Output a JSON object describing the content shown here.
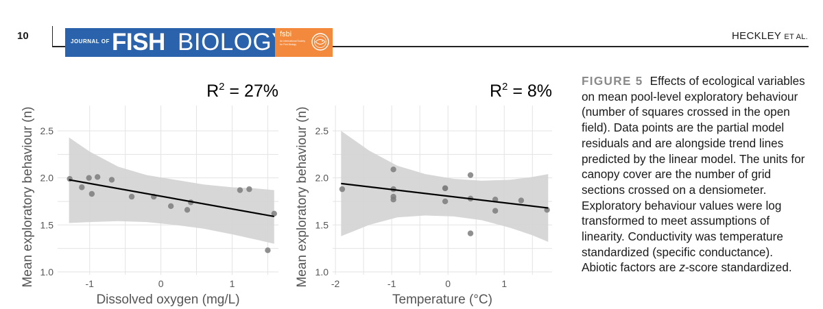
{
  "header": {
    "page_number": "10",
    "journal_prefix": "JOURNAL OF",
    "journal_fish": "FISH",
    "journal_biology": "BIOLOGY",
    "society_acronym": "fsbi",
    "society_name": "An International Society for Fish Biology",
    "authors": "HECKLEY",
    "authors_suffix": "ET AL.",
    "brand_blue": "#2a62ab",
    "brand_orange": "#f3893d"
  },
  "caption": {
    "label": "FIGURE 5",
    "text_before_italic": "Effects of ecological variables on mean pool-level exploratory behaviour (number of squares crossed in the open field). Data points are the partial model residuals and are alongside trend lines predicted by the linear model. The units for canopy cover are the number of grid sections crossed on a densiometer. Exploratory behaviour values were log transformed to meet assumptions of linearity. Conductivity was temperature standardized (specific conductance). Abiotic factors are ",
    "italic_letter": "z",
    "text_after_italic": "-score standardized."
  },
  "chart_data": [
    {
      "type": "scatter",
      "title": "R² = 27%",
      "r2_label": "R",
      "r2_exponent": "2",
      "r2_value": " = 27%",
      "xlabel": "Dissolved oxygen (mg/L)",
      "ylabel": "Mean exploratory behaviour (n)",
      "xlim": [
        -1.45,
        1.65
      ],
      "ylim": [
        0.97,
        2.77
      ],
      "xticks": [
        -1,
        0,
        1
      ],
      "xtick_labels": [
        "-1",
        "0",
        "1"
      ],
      "yticks": [
        1.0,
        1.5,
        2.0,
        2.5
      ],
      "ytick_labels": [
        "1.0",
        "1.5",
        "2.0",
        "2.5"
      ],
      "grid": true,
      "points": [
        {
          "x": -1.28,
          "y": 1.99
        },
        {
          "x": -1.11,
          "y": 1.9
        },
        {
          "x": -1.01,
          "y": 2.0
        },
        {
          "x": -0.97,
          "y": 1.83
        },
        {
          "x": -0.89,
          "y": 2.01
        },
        {
          "x": -0.69,
          "y": 1.98
        },
        {
          "x": -0.41,
          "y": 1.8
        },
        {
          "x": -0.1,
          "y": 1.8
        },
        {
          "x": 0.14,
          "y": 1.7
        },
        {
          "x": 0.37,
          "y": 1.66
        },
        {
          "x": 0.42,
          "y": 1.74
        },
        {
          "x": 1.11,
          "y": 1.87
        },
        {
          "x": 1.24,
          "y": 1.88
        },
        {
          "x": 1.5,
          "y": 1.23
        },
        {
          "x": 1.59,
          "y": 1.62
        }
      ],
      "trend": {
        "x": [
          -1.29,
          1.59
        ],
        "y": [
          1.98,
          1.59
        ]
      },
      "ci_upper": [
        {
          "x": -1.29,
          "y": 2.43
        },
        {
          "x": -1.0,
          "y": 2.28
        },
        {
          "x": -0.6,
          "y": 2.12
        },
        {
          "x": -0.2,
          "y": 2.03
        },
        {
          "x": 0.2,
          "y": 1.98
        },
        {
          "x": 0.6,
          "y": 1.93
        },
        {
          "x": 1.0,
          "y": 1.9
        },
        {
          "x": 1.3,
          "y": 1.89
        },
        {
          "x": 1.59,
          "y": 1.87
        }
      ],
      "ci_lower": [
        {
          "x": -1.29,
          "y": 1.52
        },
        {
          "x": -1.0,
          "y": 1.53
        },
        {
          "x": -0.6,
          "y": 1.54
        },
        {
          "x": -0.2,
          "y": 1.53
        },
        {
          "x": 0.2,
          "y": 1.5
        },
        {
          "x": 0.6,
          "y": 1.46
        },
        {
          "x": 1.0,
          "y": 1.4
        },
        {
          "x": 1.3,
          "y": 1.35
        },
        {
          "x": 1.59,
          "y": 1.3
        }
      ],
      "colors": {
        "point": "#7c7c7c",
        "line": "#000000",
        "band": "#d3d3d3",
        "grid": "#e3e3e3"
      }
    },
    {
      "type": "scatter",
      "title": "R² = 8%",
      "r2_label": "R",
      "r2_exponent": "2",
      "r2_value": " = 8%",
      "xlabel": "Temperature (°C)",
      "ylabel": "Mean exploratory behaviour (n)",
      "xlim": [
        -2.05,
        1.85
      ],
      "ylim": [
        0.97,
        2.77
      ],
      "xticks": [
        -2,
        -1,
        0,
        1
      ],
      "xtick_labels": [
        "-2",
        "-1",
        "0",
        "1"
      ],
      "yticks": [
        1.0,
        1.5,
        2.0,
        2.5
      ],
      "ytick_labels": [
        "1.0",
        "1.5",
        "2.0",
        "2.5"
      ],
      "grid": true,
      "points": [
        {
          "x": -1.88,
          "y": 1.88
        },
        {
          "x": -0.97,
          "y": 2.09
        },
        {
          "x": -0.97,
          "y": 1.88
        },
        {
          "x": -0.97,
          "y": 1.8
        },
        {
          "x": -0.97,
          "y": 1.77
        },
        {
          "x": -0.05,
          "y": 1.89
        },
        {
          "x": -0.05,
          "y": 1.89
        },
        {
          "x": -0.05,
          "y": 1.75
        },
        {
          "x": 0.4,
          "y": 2.03
        },
        {
          "x": 0.4,
          "y": 1.78
        },
        {
          "x": 0.4,
          "y": 1.41
        },
        {
          "x": 0.84,
          "y": 1.77
        },
        {
          "x": 0.84,
          "y": 1.65
        },
        {
          "x": 1.3,
          "y": 1.76
        },
        {
          "x": 1.76,
          "y": 1.66
        }
      ],
      "trend": {
        "x": [
          -1.9,
          1.78
        ],
        "y": [
          1.94,
          1.68
        ]
      },
      "ci_upper": [
        {
          "x": -1.9,
          "y": 2.5
        },
        {
          "x": -1.4,
          "y": 2.29
        },
        {
          "x": -0.9,
          "y": 2.13
        },
        {
          "x": -0.4,
          "y": 2.04
        },
        {
          "x": 0.1,
          "y": 1.99
        },
        {
          "x": 0.6,
          "y": 1.97
        },
        {
          "x": 1.1,
          "y": 1.98
        },
        {
          "x": 1.5,
          "y": 2.01
        },
        {
          "x": 1.78,
          "y": 2.04
        }
      ],
      "ci_lower": [
        {
          "x": -1.9,
          "y": 1.38
        },
        {
          "x": -1.4,
          "y": 1.5
        },
        {
          "x": -0.9,
          "y": 1.58
        },
        {
          "x": -0.4,
          "y": 1.6
        },
        {
          "x": 0.1,
          "y": 1.59
        },
        {
          "x": 0.6,
          "y": 1.55
        },
        {
          "x": 1.1,
          "y": 1.47
        },
        {
          "x": 1.5,
          "y": 1.39
        },
        {
          "x": 1.78,
          "y": 1.32
        }
      ],
      "colors": {
        "point": "#7c7c7c",
        "line": "#000000",
        "band": "#d3d3d3",
        "grid": "#e3e3e3"
      }
    }
  ]
}
